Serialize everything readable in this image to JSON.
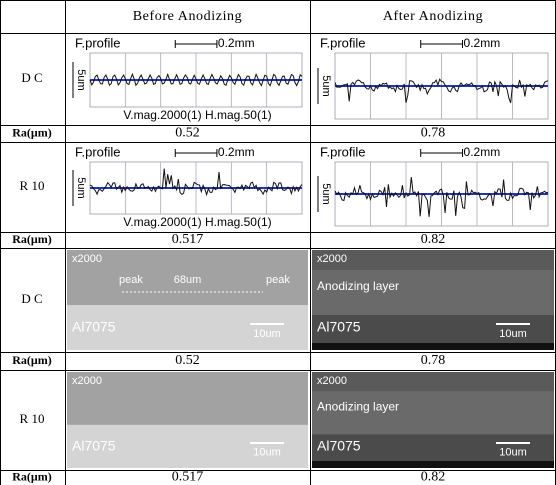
{
  "table": {
    "header": [
      "Before Anodizing",
      "After Anodizing"
    ],
    "rows": [
      {
        "label": "D C",
        "cells": [
          {
            "title": "F.profile",
            "scale": "0.2mm",
            "vscale": "5um",
            "mag": "V.mag.2000(1) H.mag.50(1)"
          },
          {
            "title": "F.profile",
            "scale": "0.2mm",
            "vscale": "5um"
          }
        ]
      },
      {
        "label": "Ra(μm)",
        "values": [
          "0.52",
          "0.78"
        ]
      },
      {
        "label": "R 10",
        "cells": [
          {
            "title": "F.profile",
            "scale": "0.2mm",
            "vscale": "5um",
            "mag": "V.mag.2000(1) H.mag.50(1)"
          },
          {
            "title": "F.profile",
            "scale": "0.2mm",
            "vscale": "5um"
          }
        ]
      },
      {
        "label": "Ra(μm)",
        "values": [
          "0.517",
          "0.82"
        ]
      },
      {
        "label": "D C",
        "sem": [
          {
            "mag": "x2000",
            "peak_left": "peak",
            "width": "68um",
            "peak_right": "peak",
            "material": "Al7075",
            "scalebar": "10um"
          },
          {
            "mag": "x2000",
            "layer": "Anodizing layer",
            "material": "Al7075",
            "scalebar": "10um"
          }
        ]
      },
      {
        "label": "Ra(μm)",
        "values": [
          "0.52",
          "0.78"
        ]
      },
      {
        "label": "R 10",
        "sem": [
          {
            "mag": "x2000",
            "material": "Al7075",
            "scalebar": "10um"
          },
          {
            "mag": "x2000",
            "layer": "Anodizing layer",
            "material": "Al7075",
            "scalebar": "10um"
          }
        ]
      },
      {
        "label": "Ra(μm)",
        "values": [
          "0.517",
          "0.82"
        ]
      }
    ]
  }
}
